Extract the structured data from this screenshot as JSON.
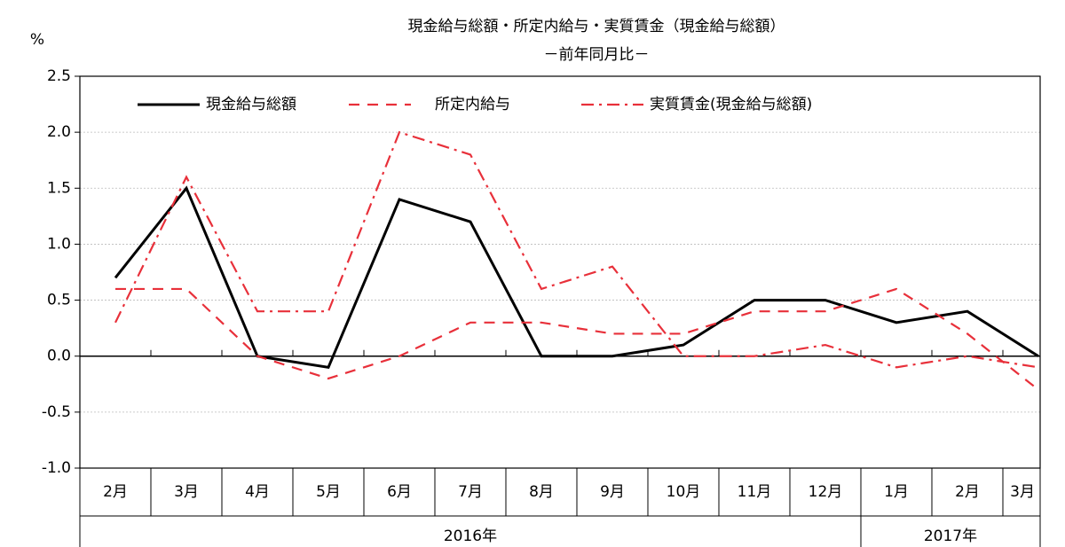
{
  "chart_data": {
    "type": "line",
    "title": "現金給与総額・所定内給与・実質賃金（現金給与総額）",
    "subtitle": "－前年同月比－",
    "y_label": "%",
    "categories": [
      "2月",
      "3月",
      "4月",
      "5月",
      "6月",
      "7月",
      "8月",
      "9月",
      "10月",
      "11月",
      "12月",
      "1月",
      "2月",
      "3月"
    ],
    "groups": [
      {
        "label": "2016年",
        "count": 11
      },
      {
        "label": "2017年",
        "count": 3
      }
    ],
    "series": [
      {
        "name": "現金給与総額",
        "color": "#000000",
        "dash": "solid",
        "values": [
          0.7,
          1.5,
          0.0,
          -0.1,
          1.4,
          1.2,
          0.0,
          0.0,
          0.1,
          0.5,
          0.5,
          0.3,
          0.4,
          0.0
        ]
      },
      {
        "name": "所定内給与",
        "color": "#e8303a",
        "dash": "dashed",
        "values": [
          0.6,
          0.6,
          0.0,
          -0.2,
          0.0,
          0.3,
          0.3,
          0.2,
          0.2,
          0.4,
          0.4,
          0.6,
          0.2,
          -0.3
        ]
      },
      {
        "name": "実質賃金(現金給与総額)",
        "color": "#e8303a",
        "dash": "dashdot",
        "values": [
          0.3,
          1.6,
          0.4,
          0.4,
          2.0,
          1.8,
          0.6,
          0.8,
          0.0,
          0.0,
          0.1,
          -0.1,
          0.0,
          -0.1
        ]
      }
    ],
    "ylim": [
      -1.0,
      2.5
    ],
    "yticks": [
      {
        "value": -1.0,
        "label": "-1.0"
      },
      -0.5,
      {
        "value": 0.0,
        "label": "0.0"
      },
      0.5,
      {
        "value": 1.0,
        "label": "1.0"
      },
      1.5,
      {
        "value": 2.0,
        "label": "2.0"
      },
      2.5
    ],
    "grid": true
  }
}
